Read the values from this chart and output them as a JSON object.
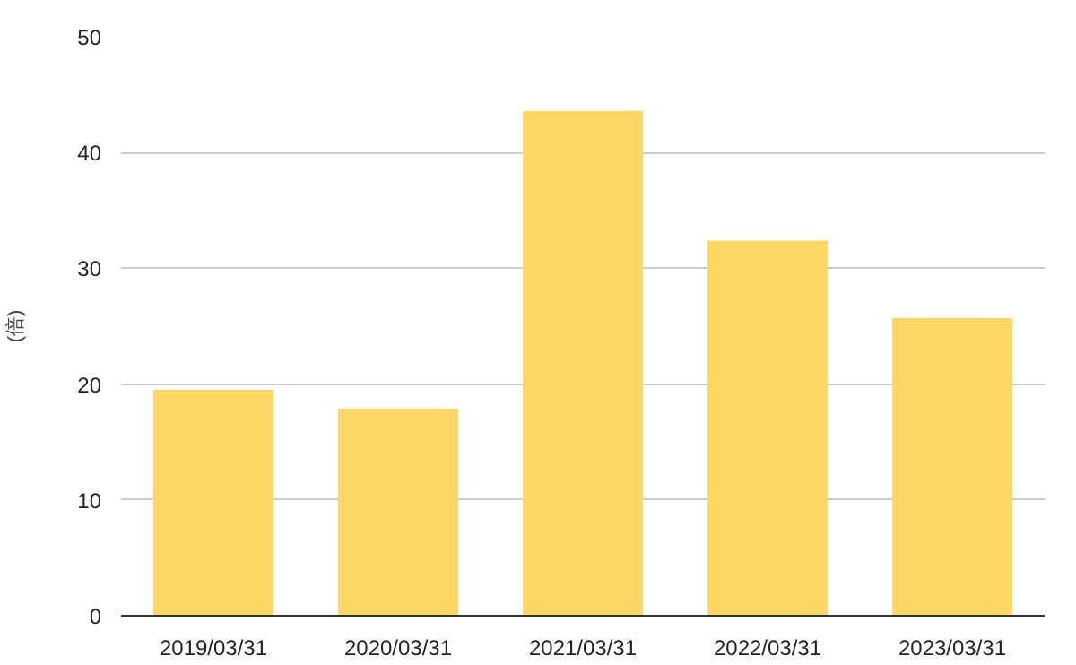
{
  "chart_data": {
    "type": "bar",
    "ylabel": "(倍)",
    "categories": [
      "2019/03/31",
      "2020/03/31",
      "2021/03/31",
      "2022/03/31",
      "2023/03/31"
    ],
    "values": [
      19.5,
      17.9,
      43.6,
      32.4,
      25.7
    ],
    "color": "#fdd766",
    "ylim": [
      0,
      50
    ],
    "yticks": [
      0,
      10,
      20,
      30,
      40,
      50
    ],
    "grid": "y"
  }
}
